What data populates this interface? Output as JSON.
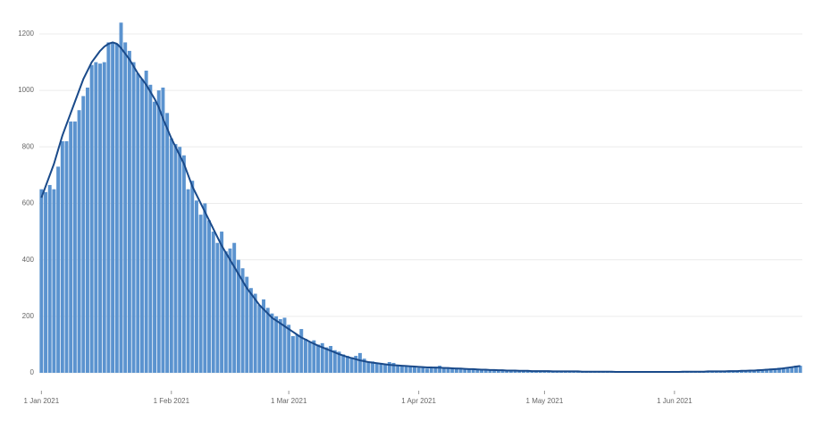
{
  "chart_data": {
    "type": "bar",
    "categories": [
      "1 Jan 2021",
      null,
      null,
      null,
      null,
      null,
      null,
      null,
      null,
      null,
      null,
      null,
      null,
      null,
      null,
      null,
      null,
      null,
      null,
      null,
      null,
      null,
      null,
      null,
      null,
      null,
      null,
      null,
      null,
      null,
      null,
      "1 Feb 2021",
      null,
      null,
      null,
      null,
      null,
      null,
      null,
      null,
      null,
      null,
      null,
      null,
      null,
      null,
      null,
      null,
      null,
      null,
      null,
      null,
      null,
      null,
      null,
      null,
      null,
      null,
      null,
      "1 Mar 2021",
      null,
      null,
      null,
      null,
      null,
      null,
      null,
      null,
      null,
      null,
      null,
      null,
      null,
      null,
      null,
      null,
      null,
      null,
      null,
      null,
      null,
      null,
      null,
      null,
      null,
      null,
      null,
      null,
      null,
      null,
      "1 Apr 2021",
      null,
      null,
      null,
      null,
      null,
      null,
      null,
      null,
      null,
      null,
      null,
      null,
      null,
      null,
      null,
      null,
      null,
      null,
      null,
      null,
      null,
      null,
      null,
      null,
      null,
      null,
      null,
      null,
      null,
      "1 May 2021",
      null,
      null,
      null,
      null,
      null,
      null,
      null,
      null,
      null,
      null,
      null,
      null,
      null,
      null,
      null,
      null,
      null,
      null,
      null,
      null,
      null,
      null,
      null,
      null,
      null,
      null,
      null,
      null,
      null,
      null,
      "1 Jun 2021",
      null,
      null,
      null,
      null,
      null,
      null,
      null,
      null,
      null,
      null,
      null,
      null,
      null,
      null,
      null,
      null,
      null,
      null,
      null,
      null,
      null,
      null,
      null,
      null,
      null,
      null,
      null,
      null,
      null,
      null
    ],
    "series": [
      {
        "type": "bar",
        "color": "#5b93cf",
        "values": [
          650,
          640,
          665,
          650,
          730,
          820,
          820,
          890,
          890,
          930,
          980,
          1010,
          1090,
          1100,
          1095,
          1100,
          1170,
          1170,
          1165,
          1240,
          1170,
          1140,
          1100,
          1060,
          1040,
          1070,
          1020,
          960,
          1000,
          1010,
          920,
          830,
          810,
          800,
          770,
          650,
          680,
          610,
          560,
          600,
          540,
          500,
          460,
          500,
          430,
          440,
          460,
          400,
          370,
          340,
          300,
          280,
          240,
          260,
          230,
          210,
          200,
          190,
          195,
          170,
          130,
          135,
          155,
          120,
          110,
          115,
          100,
          105,
          90,
          95,
          80,
          75,
          65,
          60,
          55,
          60,
          70,
          50,
          40,
          40,
          35,
          35,
          30,
          38,
          35,
          28,
          25,
          22,
          25,
          20,
          18,
          20,
          15,
          18,
          22,
          25,
          20,
          18,
          15,
          18,
          15,
          12,
          14,
          15,
          12,
          10,
          12,
          10,
          10,
          8,
          9,
          8,
          10,
          7,
          8,
          7,
          8,
          6,
          7,
          6,
          5,
          6,
          5,
          5,
          4,
          6,
          5,
          4,
          5,
          4,
          5,
          6,
          4,
          5,
          4,
          3,
          4,
          3,
          4,
          3,
          3,
          2,
          3,
          2,
          3,
          2,
          3,
          3,
          2,
          3,
          3,
          4,
          4,
          5,
          4,
          5,
          4,
          5,
          5,
          4,
          5,
          6,
          6,
          5,
          6,
          7,
          8,
          8,
          7,
          9,
          10,
          12,
          10,
          14,
          15,
          12,
          18,
          16,
          20,
          22,
          25,
          25
        ]
      },
      {
        "type": "line",
        "color": "#1a4a8a",
        "values": [
          620,
          660,
          700,
          740,
          790,
          840,
          880,
          920,
          960,
          1000,
          1040,
          1070,
          1100,
          1120,
          1140,
          1155,
          1165,
          1170,
          1165,
          1150,
          1130,
          1110,
          1085,
          1060,
          1040,
          1020,
          995,
          970,
          940,
          900,
          865,
          830,
          800,
          770,
          740,
          700,
          660,
          630,
          600,
          570,
          540,
          510,
          480,
          450,
          425,
          400,
          375,
          350,
          325,
          300,
          280,
          260,
          240,
          225,
          210,
          195,
          185,
          175,
          165,
          155,
          145,
          135,
          125,
          118,
          110,
          103,
          96,
          90,
          84,
          78,
          72,
          66,
          61,
          56,
          52,
          48,
          44,
          41,
          38,
          36,
          34,
          32,
          30,
          28,
          27,
          26,
          25,
          24,
          23,
          22,
          21,
          20,
          19,
          19,
          18,
          18,
          17,
          17,
          16,
          15,
          15,
          14,
          13,
          13,
          12,
          11,
          11,
          10,
          10,
          9,
          9,
          8,
          8,
          8,
          7,
          7,
          7,
          6,
          6,
          6,
          6,
          6,
          5,
          5,
          5,
          5,
          5,
          5,
          5,
          4,
          4,
          4,
          4,
          4,
          4,
          4,
          4,
          3,
          3,
          3,
          3,
          3,
          3,
          3,
          3,
          3,
          3,
          3,
          3,
          3,
          3,
          3,
          3,
          4,
          4,
          4,
          4,
          4,
          4,
          5,
          5,
          5,
          5,
          5,
          6,
          6,
          6,
          7,
          7,
          8,
          8,
          9,
          10,
          11,
          12,
          13,
          14,
          16,
          18,
          20,
          22,
          24
        ]
      }
    ],
    "ylim": [
      0,
      1260
    ],
    "yticks": [
      0,
      200,
      400,
      600,
      800,
      1000,
      1200
    ],
    "grid": true
  }
}
